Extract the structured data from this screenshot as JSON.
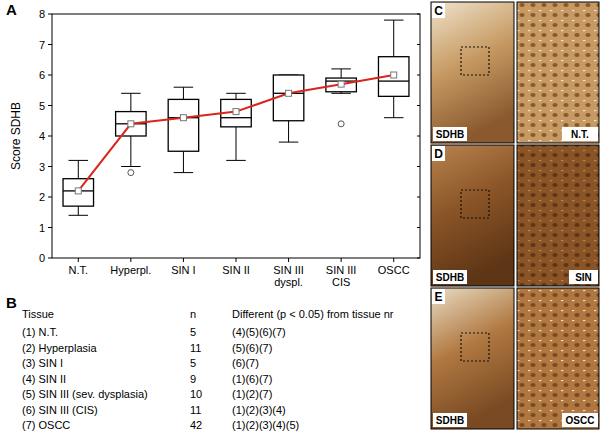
{
  "chart_data": {
    "type": "box",
    "y_label": "Score SDHB",
    "categories": [
      "N.T.",
      "Hyperpl.",
      "SIN I",
      "SIN II",
      "SIN III dyspl.",
      "SIN III CIS",
      "OSCC"
    ],
    "min": [
      1.4,
      3.0,
      2.8,
      3.2,
      3.8,
      5.4,
      4.6
    ],
    "q1": [
      1.7,
      4.0,
      3.5,
      4.3,
      4.5,
      5.45,
      5.3
    ],
    "median": [
      2.2,
      4.4,
      4.6,
      4.6,
      5.4,
      5.8,
      5.8
    ],
    "q3": [
      2.6,
      4.8,
      5.2,
      5.2,
      6.0,
      5.9,
      6.6
    ],
    "max": [
      3.2,
      5.4,
      5.6,
      5.4,
      6.0,
      6.2,
      7.8
    ],
    "mean": [
      2.2,
      4.4,
      4.6,
      4.8,
      5.4,
      5.7,
      6.0
    ],
    "outliers": [
      [],
      [
        2.8
      ],
      [],
      [],
      [],
      [
        4.4
      ],
      []
    ],
    "color": "#d9261c",
    "ylim": [
      0,
      8
    ],
    "yticks": [
      0,
      1,
      2,
      3,
      4,
      5,
      6,
      7,
      8
    ],
    "grid": false
  },
  "panel_labels": [
    "A",
    "B"
  ],
  "table": {
    "header": [
      "Tissue",
      "n",
      "Different (p < 0.05) from tissue nr"
    ],
    "rows": [
      [
        "(1) N.T.",
        5,
        "(4)(5)(6)(7)"
      ],
      [
        "(2) Hyperplasia",
        11,
        "(5)(6)(7)"
      ],
      [
        "(3) SIN I",
        5,
        "(6)(7)"
      ],
      [
        "(4) SIN II",
        9,
        "(1)(6)(7)"
      ],
      [
        "(5) SIN III (sev. dysplasia)",
        10,
        "(1)(2)(7)"
      ],
      [
        "(6) SIN III (CIS)",
        11,
        "(1)(2)(3)(4)"
      ],
      [
        "(7) OSCC",
        42,
        "(1)(2)(3)(4)(5)"
      ]
    ]
  },
  "images": [
    {
      "letter": "C",
      "stain": "SDHB",
      "tissue": "N.T."
    },
    {
      "letter": "D",
      "stain": "SDHB",
      "tissue": "SIN"
    },
    {
      "letter": "E",
      "stain": "SDHB",
      "tissue": "OSCC"
    }
  ]
}
